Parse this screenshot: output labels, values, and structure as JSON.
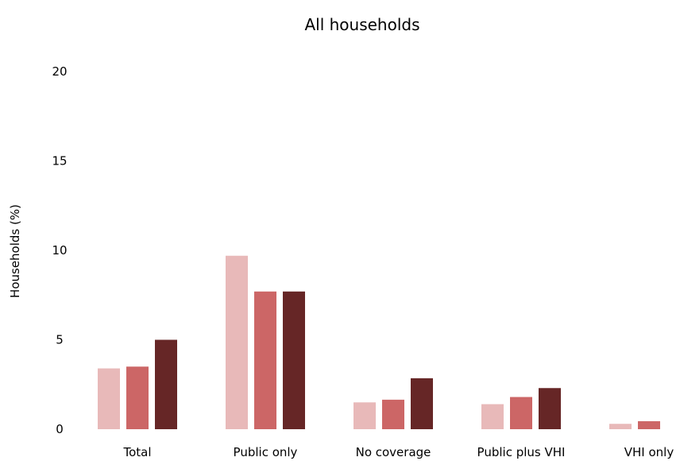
{
  "chart_data": {
    "type": "bar",
    "title": "All households",
    "xlabel": "",
    "ylabel": "Households (%)",
    "ylim": [
      0,
      20
    ],
    "yticks": [
      0,
      5,
      10,
      15,
      20
    ],
    "grid": false,
    "categories": [
      "Total",
      "Public only",
      "No coverage",
      "Public plus VHI",
      "VHI only"
    ],
    "series": [
      {
        "color": "#e8b9b9",
        "values": [
          3.4,
          9.7,
          1.5,
          1.4,
          0.3
        ]
      },
      {
        "color": "#cc6666",
        "values": [
          3.5,
          7.7,
          1.65,
          1.8,
          0.45
        ]
      },
      {
        "color": "#662626",
        "values": [
          5.0,
          7.7,
          2.85,
          2.3,
          0
        ]
      }
    ]
  }
}
